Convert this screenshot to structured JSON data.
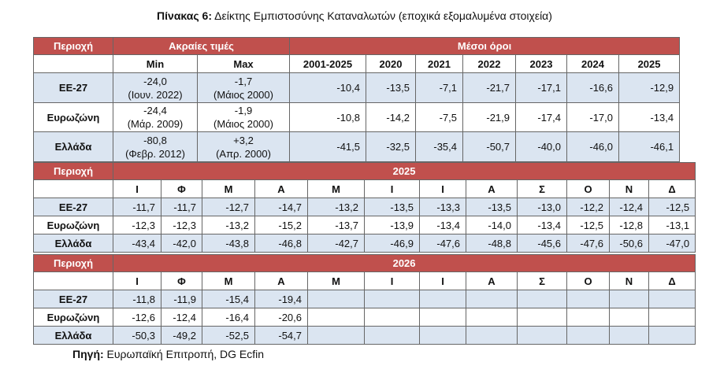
{
  "title_bold": "Πίνακας 6:",
  "title_rest": " Δείκτης Εμπιστοσύνης Καταναλωτών (εποχικά εξομαλυμένα στοιχεία)",
  "top": {
    "region_label": "Περιοχή",
    "extreme_label": "Ακραίες τιμές",
    "averages_label": "Μέσοι όροι",
    "min_label": "Min",
    "max_label": "Max",
    "years": [
      "2001-2025",
      "2020",
      "2021",
      "2022",
      "2023",
      "2024",
      "2025"
    ],
    "rows": [
      {
        "region": "ΕΕ-27",
        "min_val": "-24,0",
        "min_date": "(Ιουν. 2022)",
        "max_val": "-1,7",
        "max_date": "(Μάιος 2000)",
        "avgs": [
          "-10,4",
          "-13,5",
          "-7,1",
          "-21,7",
          "-17,1",
          "-16,6",
          "-12,9"
        ]
      },
      {
        "region": "Ευρωζώνη",
        "min_val": "-24,4",
        "min_date": "(Μάρ. 2009)",
        "max_val": "-1,9",
        "max_date": "(Μάιος 2000)",
        "avgs": [
          "-10,8",
          "-14,2",
          "-7,5",
          "-21,9",
          "-17,4",
          "-17,0",
          "-13,4"
        ]
      },
      {
        "region": "Ελλάδα",
        "min_val": "-80,8",
        "min_date": "(Φεβρ. 2012)",
        "max_val": "+3,2",
        "max_date": "(Απρ. 2000)",
        "avgs": [
          "-41,5",
          "-32,5",
          "-35,4",
          "-50,7",
          "-40,0",
          "-46,0",
          "-46,1"
        ]
      }
    ]
  },
  "months": [
    "Ι",
    "Φ",
    "Μ",
    "Α",
    "Μ",
    "Ι",
    "Ι",
    "Α",
    "Σ",
    "Ο",
    "Ν",
    "Δ"
  ],
  "y2025": {
    "region_label": "Περιοχή",
    "year": "2025",
    "rows": [
      {
        "region": "ΕΕ-27",
        "vals": [
          "-11,7",
          "-11,7",
          "-12,7",
          "-14,7",
          "-13,2",
          "-13,5",
          "-13,3",
          "-13,5",
          "-13,0",
          "-12,2",
          "-12,4",
          "-12,5"
        ]
      },
      {
        "region": "Ευρωζώνη",
        "vals": [
          "-12,3",
          "-12,3",
          "-13,2",
          "-15,2",
          "-13,7",
          "-13,9",
          "-13,4",
          "-14,0",
          "-13,4",
          "-12,5",
          "-12,8",
          "-13,1"
        ]
      },
      {
        "region": "Ελλάδα",
        "vals": [
          "-43,4",
          "-42,0",
          "-43,8",
          "-46,8",
          "-42,7",
          "-46,9",
          "-47,6",
          "-48,8",
          "-45,6",
          "-47,6",
          "-50,6",
          "-47,0"
        ]
      }
    ]
  },
  "y2026": {
    "region_label": "Περιοχή",
    "year": "2026",
    "rows": [
      {
        "region": "ΕΕ-27",
        "vals": [
          "-11,8",
          "-11,9",
          "-15,4",
          "-19,4",
          "",
          "",
          "",
          "",
          "",
          "",
          "",
          ""
        ]
      },
      {
        "region": "Ευρωζώνη",
        "vals": [
          "-12,6",
          "-12,4",
          "-16,4",
          "-20,6",
          "",
          "",
          "",
          "",
          "",
          "",
          "",
          ""
        ]
      },
      {
        "region": "Ελλάδα",
        "vals": [
          "-50,3",
          "-49,2",
          "-52,5",
          "-54,7",
          "",
          "",
          "",
          "",
          "",
          "",
          "",
          ""
        ]
      }
    ]
  },
  "source_bold": "Πηγή:",
  "source_rest": " Ευρωπαϊκή Επιτροπή, DG Ecfin",
  "colors": {
    "header_red": "#c0504d",
    "row_blue": "#dbe5f1"
  }
}
